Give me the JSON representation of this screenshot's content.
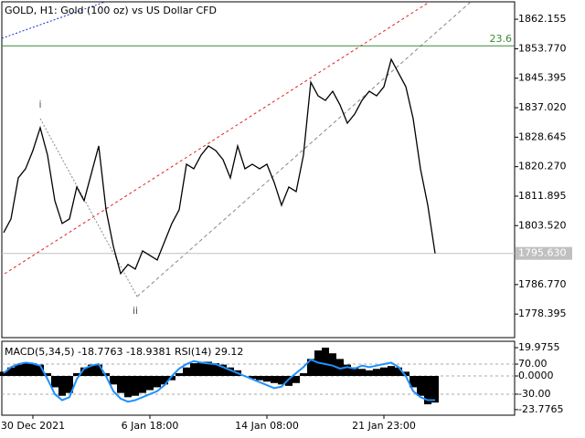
{
  "chart_data": [
    {
      "type": "line",
      "title": "GOLD, H1:  Gold (100 oz) vs US Dollar CFD",
      "color": "#000000",
      "categories": [
        null,
        null,
        null,
        null,
        "30 Dec 2021",
        null,
        null,
        null,
        null,
        null,
        null,
        null,
        null,
        null,
        null,
        null,
        null,
        null,
        null,
        null,
        "6 Jan 18:00",
        null,
        null,
        null,
        null,
        null,
        null,
        null,
        null,
        null,
        null,
        null,
        null,
        null,
        null,
        null,
        "14 Jan 08:00",
        null,
        null,
        null,
        null,
        null,
        null,
        null,
        null,
        null,
        null,
        null,
        null,
        null,
        null,
        null,
        "21 Jan 23:00",
        null,
        null,
        null,
        null,
        null,
        null,
        null
      ],
      "values": [
        1801.53,
        1805.42,
        1817.08,
        1819.67,
        1824.85,
        1831.33,
        1823.56,
        1810.6,
        1804.12,
        1805.42,
        1814.49,
        1810.6,
        1818.37,
        1826.15,
        1808.01,
        1797.65,
        1789.88,
        1792.47,
        1791.17,
        1796.35,
        1795.06,
        1793.76,
        1798.94,
        1804.12,
        1808.01,
        1820.96,
        1819.67,
        1823.56,
        1826.15,
        1824.85,
        1822.26,
        1817.08,
        1826.15,
        1819.67,
        1820.96,
        1819.67,
        1820.96,
        1815.78,
        1809.31,
        1814.49,
        1813.19,
        1823.56,
        1844.28,
        1840.39,
        1839.1,
        1841.69,
        1837.8,
        1832.62,
        1835.21,
        1839.1,
        1841.69,
        1840.39,
        1842.98,
        1850.76,
        1846.87,
        1842.98,
        1833.92,
        1819.67,
        1809.31,
        1795.63
      ],
      "ylim": [
        1771.7,
        1867.1
      ],
      "yticks": [
        1862.155,
        {
          "value": 1853.77,
          "label": "1853.770"
        },
        1845.395,
        {
          "value": 1837.02,
          "label": "1837.020"
        },
        1828.645,
        {
          "value": 1820.27,
          "label": "1820.270"
        },
        1811.895,
        {
          "value": 1803.52,
          "label": "1803.520"
        },
        {
          "value": 1786.77,
          "label": "1786.770"
        },
        1778.395
      ],
      "current_price": {
        "value": 1795.63,
        "label": "1795.630"
      },
      "fibo_level": {
        "name": "23.6",
        "price": 1854.6,
        "color": "#3a8a3a"
      },
      "annotations": [
        "i",
        "ii"
      ]
    },
    {
      "type": "bar",
      "title": "MACD(5,34,5) -18.7763 -18.9381 RSI(14) 29.12",
      "histogram": {
        "color": "#000000",
        "values": [
          3,
          6,
          8,
          9,
          9,
          8,
          2,
          -8,
          -14,
          -12,
          2,
          6,
          8,
          8,
          2,
          -6,
          -12,
          -15,
          -14,
          -12,
          -10,
          -8,
          -6,
          -3,
          2,
          6,
          9,
          10,
          10,
          9,
          8,
          6,
          4,
          0,
          -2,
          -3,
          -4,
          -5,
          -6,
          -7,
          -5,
          2,
          12,
          18,
          20,
          16,
          12,
          8,
          6,
          5,
          4,
          5,
          6,
          7,
          6,
          3,
          -8,
          -14,
          -20,
          -18.78
        ]
      },
      "rsi": {
        "color": "#1e90ff",
        "axis": "y2",
        "values": [
          40,
          60,
          70,
          75,
          72,
          65,
          20,
          -30,
          -50,
          -40,
          20,
          55,
          65,
          70,
          30,
          -20,
          -45,
          -55,
          -50,
          -40,
          -30,
          -20,
          0,
          30,
          55,
          70,
          80,
          75,
          72,
          70,
          60,
          50,
          40,
          30,
          20,
          10,
          0,
          -10,
          -5,
          20,
          40,
          60,
          85,
          75,
          70,
          65,
          55,
          60,
          55,
          65,
          60,
          65,
          70,
          75,
          60,
          30,
          -20,
          -40,
          -50,
          -50
        ]
      },
      "ylim": [
        -27.7,
        24.5
      ],
      "yticks": [
        19.9755,
        {
          "value": 0,
          "label": "0.0000"
        },
        -23.7765
      ],
      "y2lim": [
        -100,
        146
      ],
      "y2ticks": [
        {
          "value": 70,
          "label": "70.00"
        },
        {
          "value": -30,
          "label": "-30.00"
        }
      ]
    }
  ]
}
